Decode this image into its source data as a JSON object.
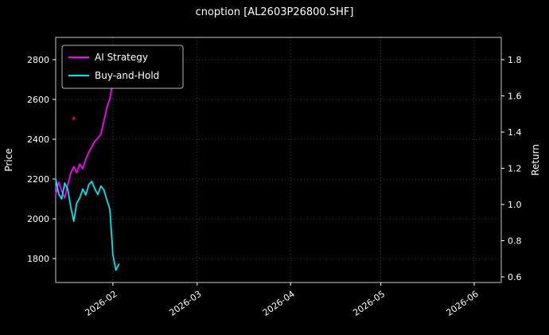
{
  "chart_data": {
    "type": "line",
    "title": "cnoption [AL2603P26800.SHF]",
    "ylabel_left": "Price",
    "ylabel_right": "Return",
    "x_unit": "days since series start (2026-01-13)",
    "xlim": [
      0,
      148
    ],
    "ylim": [
      1680,
      2912
    ],
    "y2lim": [
      0.569,
      1.923
    ],
    "grid": true,
    "background": "#000000",
    "text_color": "#ffffff",
    "spine_color": "#c8c8c8",
    "grid_color": "#555555",
    "legend_position": "upper-left",
    "x_ticks": [
      {
        "v": 19,
        "label": "2026-02"
      },
      {
        "v": 47,
        "label": "2026-03"
      },
      {
        "v": 78,
        "label": "2026-04"
      },
      {
        "v": 108,
        "label": "2026-05"
      },
      {
        "v": 139,
        "label": "2026-06"
      }
    ],
    "y_ticks": [
      {
        "v": 1800,
        "label": "1800"
      },
      {
        "v": 2000,
        "label": "2000"
      },
      {
        "v": 2200,
        "label": "2200"
      },
      {
        "v": 2400,
        "label": "2400"
      },
      {
        "v": 2600,
        "label": "2600"
      },
      {
        "v": 2800,
        "label": "2800"
      }
    ],
    "y2_ticks": [
      {
        "v": 0.6,
        "label": "0.6"
      },
      {
        "v": 0.8,
        "label": "0.8"
      },
      {
        "v": 1.0,
        "label": "1.0"
      },
      {
        "v": 1.2,
        "label": "1.2"
      },
      {
        "v": 1.4,
        "label": "1.4"
      },
      {
        "v": 1.6,
        "label": "1.6"
      },
      {
        "v": 1.8,
        "label": "1.8"
      }
    ],
    "series": [
      {
        "name": "AI Strategy",
        "color": "#ff00ff",
        "x": [
          0,
          1,
          2,
          3,
          4,
          5,
          6,
          7,
          8,
          9,
          10,
          11,
          12,
          13,
          14,
          15,
          16,
          17,
          18,
          19,
          20
        ],
        "y": [
          2120,
          2185,
          2140,
          2105,
          2170,
          2230,
          2262,
          2232,
          2275,
          2252,
          2300,
          2335,
          2362,
          2390,
          2405,
          2425,
          2490,
          2558,
          2605,
          2690,
          2800
        ]
      },
      {
        "name": "Buy-and-Hold",
        "color": "#00e5ee",
        "x": [
          0,
          1,
          2,
          3,
          4,
          5,
          6,
          7,
          8,
          9,
          10,
          11,
          12,
          13,
          14,
          15,
          16,
          17,
          18,
          19,
          20,
          21
        ],
        "y": [
          2200,
          2125,
          2100,
          2180,
          2150,
          2060,
          1988,
          2080,
          2105,
          2150,
          2120,
          2172,
          2188,
          2150,
          2122,
          2165,
          2145,
          2095,
          2048,
          1820,
          1742,
          1772
        ]
      }
    ],
    "marker": {
      "name": "signal-dot",
      "x": 6,
      "y": 2505,
      "color": "#aa1133"
    }
  }
}
